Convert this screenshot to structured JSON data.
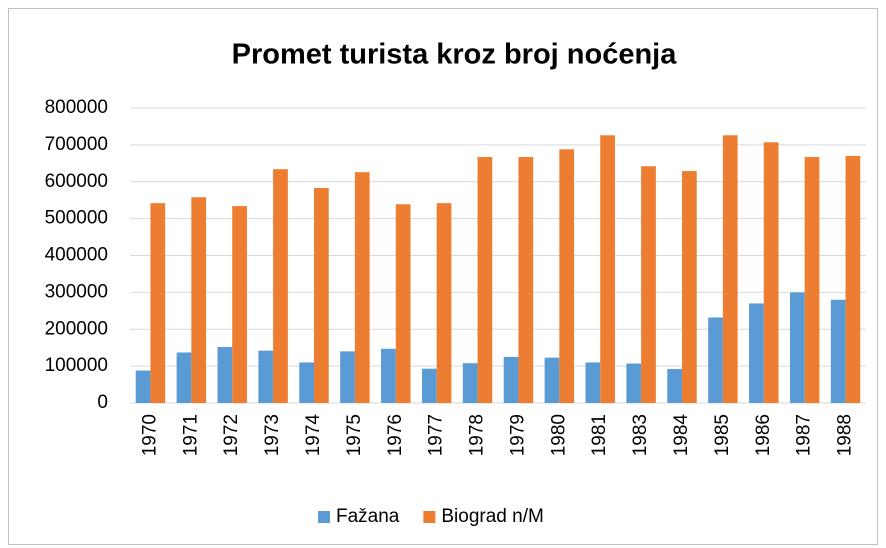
{
  "chart_data": {
    "type": "bar",
    "title": "Promet turista kroz broj noćenja",
    "categories": [
      "1970",
      "1971",
      "1972",
      "1973",
      "1974",
      "1975",
      "1976",
      "1977",
      "1978",
      "1979",
      "1980",
      "1981",
      "1983",
      "1984",
      "1985",
      "1986",
      "1987",
      "1988"
    ],
    "series": [
      {
        "name": "Fažana",
        "color": "#5b9bd5",
        "values": [
          88000,
          137000,
          152000,
          142000,
          110000,
          140000,
          147000,
          93000,
          108000,
          125000,
          123000,
          110000,
          107000,
          92000,
          232000,
          270000,
          300000,
          280000
        ]
      },
      {
        "name": "Biograd n/M",
        "color": "#ed7d31",
        "values": [
          542000,
          558000,
          534000,
          634000,
          583000,
          626000,
          539000,
          542000,
          667000,
          667000,
          688000,
          726000,
          642000,
          629000,
          726000,
          707000,
          667000,
          670000
        ]
      }
    ],
    "ylim": [
      0,
      800000
    ],
    "yticks": [
      0,
      100000,
      200000,
      300000,
      400000,
      500000,
      600000,
      700000,
      800000
    ],
    "grid": true,
    "legend": "bottom"
  }
}
